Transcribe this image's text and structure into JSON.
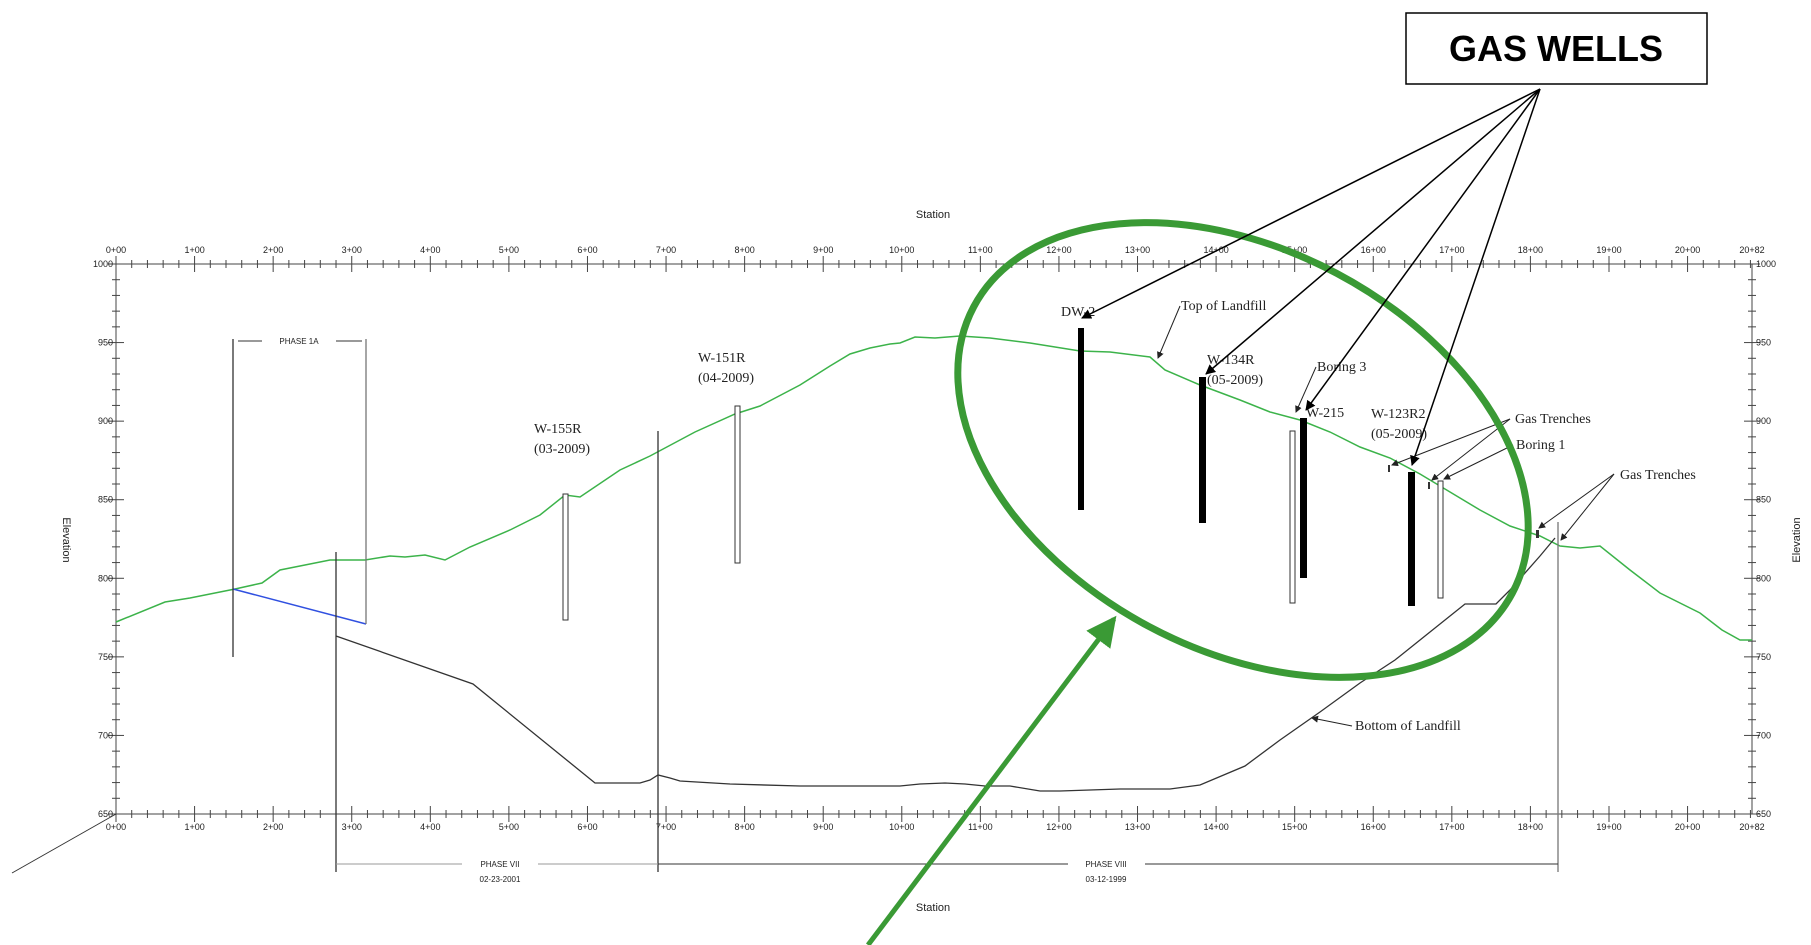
{
  "axis": {
    "x_title": "Station",
    "y_title": "Elevation",
    "station_ticks": [
      "0+00",
      "1+00",
      "2+00",
      "3+00",
      "4+00",
      "5+00",
      "6+00",
      "7+00",
      "8+00",
      "9+00",
      "10+00",
      "11+00",
      "12+00",
      "13+00",
      "14+00",
      "15+00",
      "16+00",
      "17+00",
      "18+00",
      "19+00",
      "20+00"
    ],
    "station_end": "20+82",
    "elev_ticks": [
      "1000",
      "950",
      "900",
      "850",
      "800",
      "750",
      "700",
      "650"
    ]
  },
  "wells": {
    "w155r": {
      "name": "W-155R",
      "date": "(03-2009)"
    },
    "w151r": {
      "name": "W-151R",
      "date": "(04-2009)"
    },
    "dw2": {
      "name": "DW-2"
    },
    "w134r": {
      "name": "W-134R",
      "date": "(05-2009)"
    },
    "w215": {
      "name": "W-215"
    },
    "w123r2": {
      "name": "W-123R2",
      "date": "(05-2009)"
    }
  },
  "annotations": {
    "top_of_landfill": "Top of Landfill",
    "bottom_of_landfill": "Bottom of Landfill",
    "boring3": "Boring 3",
    "boring1": "Boring 1",
    "gas_trenches_1": "Gas Trenches",
    "gas_trenches_2": "Gas Trenches"
  },
  "phases": {
    "phase1a": "PHASE 1A",
    "phase7": "PHASE VII",
    "phase7_date": "02-23-2001",
    "phase8": "PHASE VIII",
    "phase8_date": "03-12-1999"
  },
  "callout": {
    "label": "GAS WELLS"
  },
  "colors": {
    "top": "#3cb34a",
    "bottom": "#333333",
    "highlight": "#3a9a35",
    "blue": "#3050e0"
  }
}
